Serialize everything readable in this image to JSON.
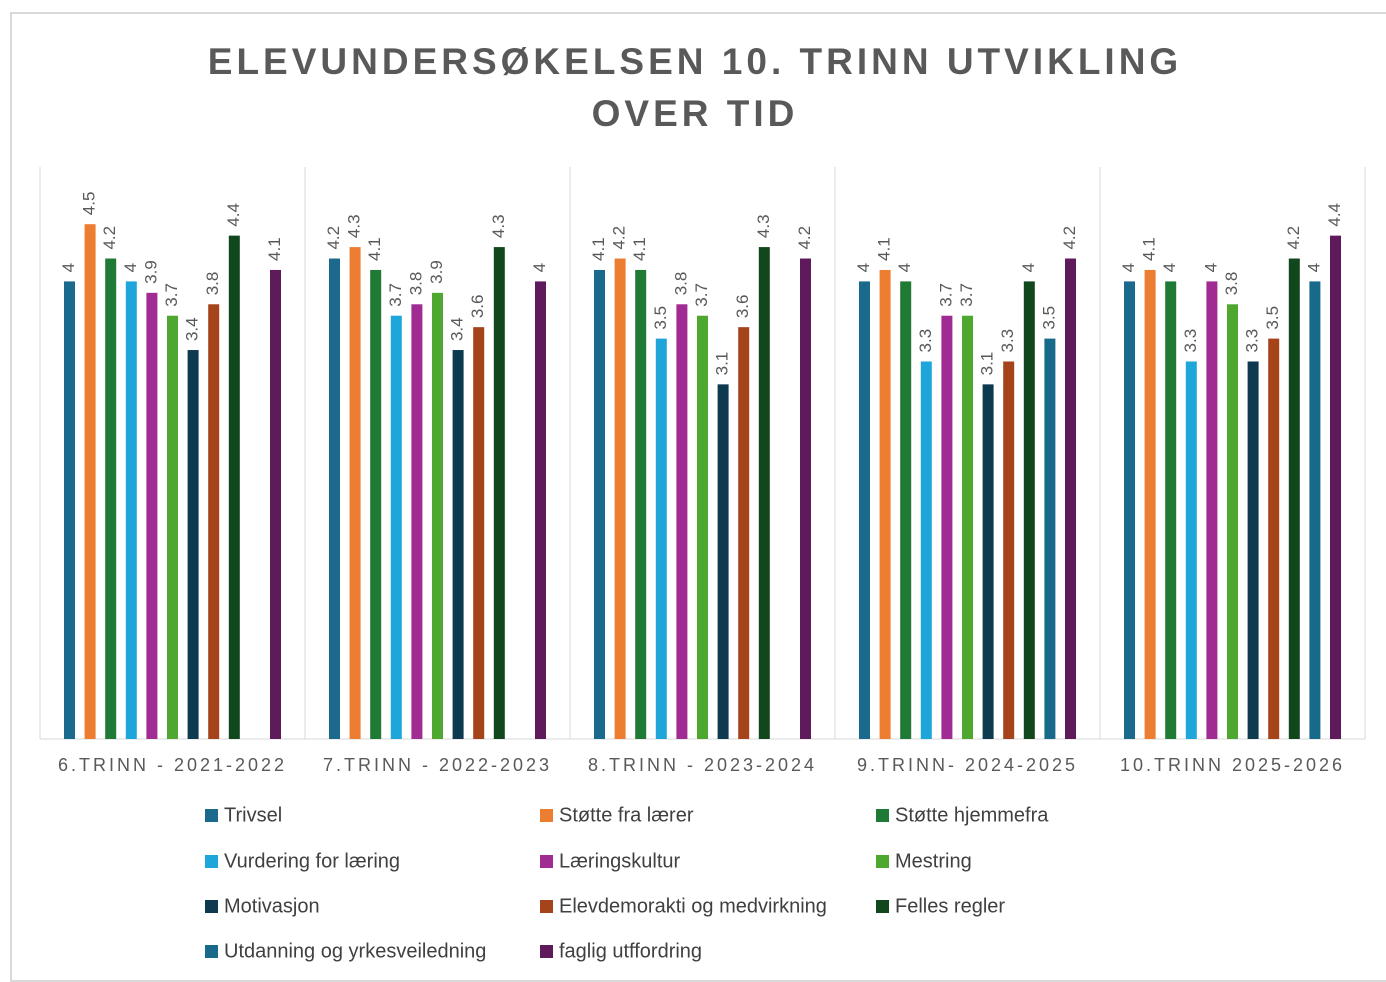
{
  "chart_data": {
    "type": "bar",
    "title": "ELEVUNDERSØKELSEN 10. TRINN UTVIKLING OVER TID",
    "categories": [
      "6.TRINN - 2021-2022",
      "7.TRINN - 2022-2023",
      "8.TRINN - 2023-2024",
      "9.TRINN- 2024-2025",
      "10.TRINN 2025-2026"
    ],
    "ylim": [
      0,
      5
    ],
    "series": [
      {
        "name": "Trivsel",
        "color": "#1b6a8e",
        "values": [
          4,
          4.2,
          4.1,
          4,
          4
        ]
      },
      {
        "name": "Støtte fra lærer",
        "color": "#ed7d31",
        "values": [
          4.5,
          4.3,
          4.2,
          4.1,
          4.1
        ]
      },
      {
        "name": "Støtte hjemmefra",
        "color": "#1e7a34",
        "values": [
          4.2,
          4.1,
          4.1,
          4,
          4
        ]
      },
      {
        "name": "Vurdering for læring",
        "color": "#1ea6da",
        "values": [
          4,
          3.7,
          3.5,
          3.3,
          3.3
        ]
      },
      {
        "name": "Læringskultur",
        "color": "#a02b93",
        "values": [
          3.9,
          3.8,
          3.8,
          3.7,
          4
        ]
      },
      {
        "name": "Mestring",
        "color": "#4ea72e",
        "values": [
          3.7,
          3.9,
          3.7,
          3.7,
          3.8
        ]
      },
      {
        "name": "Motivasjon",
        "color": "#0e3a50",
        "values": [
          3.4,
          3.4,
          3.1,
          3.1,
          3.3
        ]
      },
      {
        "name": "Elevdemorakti og medvirkning",
        "color": "#a5431a",
        "values": [
          3.8,
          3.6,
          3.6,
          3.3,
          3.5
        ]
      },
      {
        "name": "Felles regler",
        "color": "#10471c",
        "values": [
          4.4,
          4.3,
          4.3,
          4,
          4.2
        ]
      },
      {
        "name": "Utdanning og yrkesveiledning",
        "color": "#186a8a",
        "values": [
          null,
          null,
          null,
          3.5,
          4
        ]
      },
      {
        "name": "faglig utffordring",
        "color": "#5f1a5b",
        "values": [
          4.1,
          4,
          4.2,
          4.2,
          4.4
        ]
      }
    ]
  }
}
